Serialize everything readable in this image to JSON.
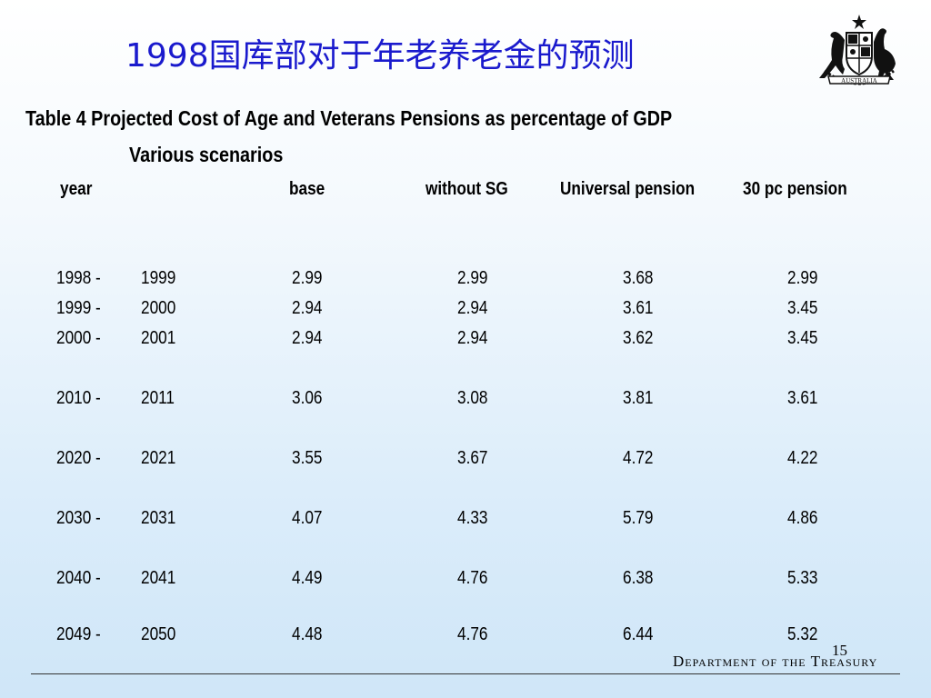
{
  "slide": {
    "title": "1998国库部对于年老养老金的预测",
    "heading": "Table 4 Projected Cost of Age and Veterans Pensions as percentage of GDP",
    "subheading": "Various scenarios",
    "page_number": "15",
    "department": "Department of the Treasury",
    "crest_text": "AUSTRALIA"
  },
  "table": {
    "headers": {
      "year": "year",
      "base": "base",
      "without_sg": "without SG",
      "universal": "Universal pension",
      "pc30": "30 pc pension"
    },
    "rows": [
      [
        "1998 -",
        "1999",
        "2.99",
        "2.99",
        "3.68",
        "2.99"
      ],
      [
        "1999 -",
        "2000",
        "2.94",
        "2.94",
        "3.61",
        "3.45"
      ],
      [
        "2000 -",
        "2001",
        "2.94",
        "2.94",
        "3.62",
        "3.45"
      ],
      [
        "2010 -",
        "2011",
        "3.06",
        "3.08",
        "3.81",
        "3.61"
      ],
      [
        "2020 -",
        "2021",
        "3.55",
        "3.67",
        "4.72",
        "4.22"
      ],
      [
        "2030 -",
        "2031",
        "4.07",
        "4.33",
        "5.79",
        "4.86"
      ],
      [
        "2040 -",
        "2041",
        "4.49",
        "4.76",
        "6.38",
        "5.33"
      ],
      [
        "2049 -",
        "2050",
        "4.48",
        "4.76",
        "6.44",
        "5.32"
      ]
    ]
  }
}
